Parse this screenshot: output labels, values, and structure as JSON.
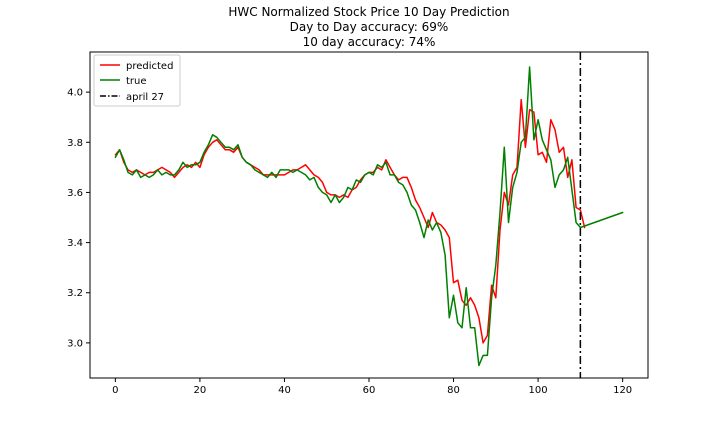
{
  "chart_data": {
    "type": "line",
    "title_lines": [
      "HWC Normalized Stock Price 10 Day Prediction",
      "Day to Day accuracy: 69%",
      "10 day accuracy: 74%"
    ],
    "xlabel": "",
    "ylabel": "",
    "xlim": [
      -6,
      126
    ],
    "ylim": [
      2.86,
      4.16
    ],
    "x_ticks": [
      0,
      20,
      40,
      60,
      80,
      100,
      120
    ],
    "x_tick_labels": [
      "0",
      "20",
      "40",
      "60",
      "80",
      "100",
      "120"
    ],
    "y_ticks": [
      3.0,
      3.2,
      3.4,
      3.6,
      3.8,
      4.0
    ],
    "y_tick_labels": [
      "3.0",
      "3.2",
      "3.4",
      "3.6",
      "3.8",
      "4.0"
    ],
    "grid": false,
    "legend_position": "top-left",
    "series": [
      {
        "name": "predicted",
        "color": "#ff0000",
        "style": "solid",
        "points": [
          [
            0,
            3.75
          ],
          [
            1,
            3.77
          ],
          [
            2,
            3.72
          ],
          [
            3,
            3.69
          ],
          [
            4,
            3.68
          ],
          [
            5,
            3.69
          ],
          [
            6,
            3.68
          ],
          [
            7,
            3.67
          ],
          [
            8,
            3.68
          ],
          [
            9,
            3.68
          ],
          [
            10,
            3.69
          ],
          [
            11,
            3.7
          ],
          [
            12,
            3.69
          ],
          [
            13,
            3.68
          ],
          [
            14,
            3.66
          ],
          [
            15,
            3.68
          ],
          [
            16,
            3.7
          ],
          [
            17,
            3.71
          ],
          [
            18,
            3.7
          ],
          [
            19,
            3.72
          ],
          [
            20,
            3.7
          ],
          [
            21,
            3.75
          ],
          [
            22,
            3.78
          ],
          [
            23,
            3.8
          ],
          [
            24,
            3.81
          ],
          [
            25,
            3.79
          ],
          [
            26,
            3.77
          ],
          [
            27,
            3.77
          ],
          [
            28,
            3.76
          ],
          [
            29,
            3.78
          ],
          [
            30,
            3.74
          ],
          [
            31,
            3.72
          ],
          [
            32,
            3.71
          ],
          [
            33,
            3.7
          ],
          [
            34,
            3.69
          ],
          [
            35,
            3.67
          ],
          [
            36,
            3.67
          ],
          [
            37,
            3.67
          ],
          [
            38,
            3.67
          ],
          [
            39,
            3.67
          ],
          [
            40,
            3.67
          ],
          [
            41,
            3.68
          ],
          [
            42,
            3.69
          ],
          [
            43,
            3.69
          ],
          [
            44,
            3.7
          ],
          [
            45,
            3.71
          ],
          [
            46,
            3.69
          ],
          [
            47,
            3.67
          ],
          [
            48,
            3.66
          ],
          [
            49,
            3.64
          ],
          [
            50,
            3.6
          ],
          [
            51,
            3.59
          ],
          [
            52,
            3.59
          ],
          [
            53,
            3.58
          ],
          [
            54,
            3.59
          ],
          [
            55,
            3.58
          ],
          [
            56,
            3.61
          ],
          [
            57,
            3.62
          ],
          [
            58,
            3.65
          ],
          [
            59,
            3.67
          ],
          [
            60,
            3.68
          ],
          [
            61,
            3.68
          ],
          [
            62,
            3.7
          ],
          [
            63,
            3.69
          ],
          [
            64,
            3.73
          ],
          [
            65,
            3.7
          ],
          [
            66,
            3.67
          ],
          [
            67,
            3.65
          ],
          [
            68,
            3.66
          ],
          [
            69,
            3.66
          ],
          [
            70,
            3.62
          ],
          [
            71,
            3.57
          ],
          [
            72,
            3.54
          ],
          [
            73,
            3.5
          ],
          [
            74,
            3.46
          ],
          [
            75,
            3.52
          ],
          [
            76,
            3.48
          ],
          [
            77,
            3.47
          ],
          [
            78,
            3.45
          ],
          [
            79,
            3.42
          ],
          [
            80,
            3.24
          ],
          [
            81,
            3.25
          ],
          [
            82,
            3.17
          ],
          [
            83,
            3.15
          ],
          [
            84,
            3.18
          ],
          [
            85,
            3.15
          ],
          [
            86,
            3.1
          ],
          [
            87,
            3.0
          ],
          [
            88,
            3.03
          ],
          [
            89,
            3.23
          ],
          [
            90,
            3.18
          ],
          [
            91,
            3.45
          ],
          [
            92,
            3.6
          ],
          [
            93,
            3.55
          ],
          [
            94,
            3.67
          ],
          [
            95,
            3.7
          ],
          [
            96,
            3.97
          ],
          [
            97,
            3.78
          ],
          [
            98,
            3.93
          ],
          [
            99,
            3.92
          ],
          [
            100,
            3.75
          ],
          [
            101,
            3.76
          ],
          [
            102,
            3.72
          ],
          [
            103,
            3.89
          ],
          [
            104,
            3.85
          ],
          [
            105,
            3.76
          ],
          [
            106,
            3.78
          ],
          [
            107,
            3.66
          ],
          [
            108,
            3.73
          ],
          [
            109,
            3.54
          ],
          [
            110,
            3.53
          ],
          [
            111,
            3.46
          ]
        ]
      },
      {
        "name": "true",
        "color": "#008000",
        "style": "solid",
        "points": [
          [
            0,
            3.74
          ],
          [
            1,
            3.77
          ],
          [
            2,
            3.73
          ],
          [
            3,
            3.68
          ],
          [
            4,
            3.67
          ],
          [
            5,
            3.69
          ],
          [
            6,
            3.66
          ],
          [
            7,
            3.67
          ],
          [
            8,
            3.66
          ],
          [
            9,
            3.67
          ],
          [
            10,
            3.69
          ],
          [
            11,
            3.67
          ],
          [
            12,
            3.68
          ],
          [
            13,
            3.67
          ],
          [
            14,
            3.67
          ],
          [
            15,
            3.69
          ],
          [
            16,
            3.72
          ],
          [
            17,
            3.7
          ],
          [
            18,
            3.71
          ],
          [
            19,
            3.71
          ],
          [
            20,
            3.72
          ],
          [
            21,
            3.76
          ],
          [
            22,
            3.79
          ],
          [
            23,
            3.83
          ],
          [
            24,
            3.82
          ],
          [
            25,
            3.8
          ],
          [
            26,
            3.78
          ],
          [
            27,
            3.78
          ],
          [
            28,
            3.77
          ],
          [
            29,
            3.79
          ],
          [
            30,
            3.74
          ],
          [
            31,
            3.72
          ],
          [
            32,
            3.71
          ],
          [
            33,
            3.69
          ],
          [
            34,
            3.68
          ],
          [
            35,
            3.67
          ],
          [
            36,
            3.66
          ],
          [
            37,
            3.68
          ],
          [
            38,
            3.66
          ],
          [
            39,
            3.69
          ],
          [
            40,
            3.69
          ],
          [
            41,
            3.69
          ],
          [
            42,
            3.68
          ],
          [
            43,
            3.69
          ],
          [
            44,
            3.68
          ],
          [
            45,
            3.67
          ],
          [
            46,
            3.65
          ],
          [
            47,
            3.66
          ],
          [
            48,
            3.62
          ],
          [
            49,
            3.6
          ],
          [
            50,
            3.59
          ],
          [
            51,
            3.56
          ],
          [
            52,
            3.59
          ],
          [
            53,
            3.56
          ],
          [
            54,
            3.58
          ],
          [
            55,
            3.62
          ],
          [
            56,
            3.61
          ],
          [
            57,
            3.65
          ],
          [
            58,
            3.64
          ],
          [
            59,
            3.67
          ],
          [
            60,
            3.68
          ],
          [
            61,
            3.67
          ],
          [
            62,
            3.71
          ],
          [
            63,
            3.7
          ],
          [
            64,
            3.72
          ],
          [
            65,
            3.67
          ],
          [
            66,
            3.67
          ],
          [
            67,
            3.64
          ],
          [
            68,
            3.63
          ],
          [
            69,
            3.6
          ],
          [
            70,
            3.55
          ],
          [
            71,
            3.53
          ],
          [
            72,
            3.48
          ],
          [
            73,
            3.42
          ],
          [
            74,
            3.49
          ],
          [
            75,
            3.45
          ],
          [
            76,
            3.48
          ],
          [
            77,
            3.44
          ],
          [
            78,
            3.35
          ],
          [
            79,
            3.1
          ],
          [
            80,
            3.19
          ],
          [
            81,
            3.08
          ],
          [
            82,
            3.06
          ],
          [
            83,
            3.22
          ],
          [
            84,
            3.06
          ],
          [
            85,
            3.06
          ],
          [
            86,
            2.91
          ],
          [
            87,
            2.95
          ],
          [
            88,
            2.95
          ],
          [
            89,
            3.18
          ],
          [
            90,
            3.31
          ],
          [
            91,
            3.52
          ],
          [
            92,
            3.78
          ],
          [
            93,
            3.48
          ],
          [
            94,
            3.62
          ],
          [
            95,
            3.68
          ],
          [
            96,
            3.8
          ],
          [
            97,
            3.82
          ],
          [
            98,
            4.1
          ],
          [
            99,
            3.81
          ],
          [
            100,
            3.89
          ],
          [
            101,
            3.81
          ],
          [
            102,
            3.77
          ],
          [
            103,
            3.73
          ],
          [
            104,
            3.62
          ],
          [
            105,
            3.67
          ],
          [
            106,
            3.69
          ],
          [
            107,
            3.74
          ],
          [
            108,
            3.61
          ],
          [
            109,
            3.48
          ],
          [
            110,
            3.46
          ],
          [
            120,
            3.52
          ]
        ]
      }
    ],
    "vline": {
      "name": "april 27",
      "x": 110,
      "color": "#000000",
      "style": "dashdot"
    }
  }
}
